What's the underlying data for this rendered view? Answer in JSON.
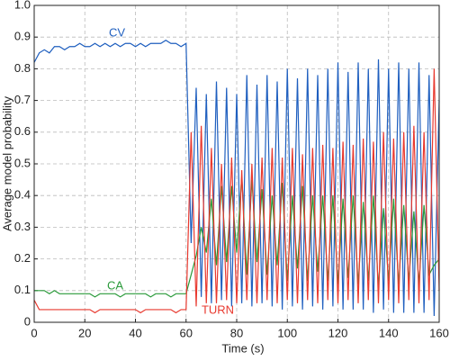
{
  "chart_data": {
    "type": "line",
    "xlabel": "Time (s)",
    "ylabel": "Average model probability",
    "annotations": [
      "CV",
      "CA",
      "TURN"
    ],
    "xlim": [
      0,
      160
    ],
    "ylim": [
      0,
      1
    ],
    "xticks": [
      0,
      20,
      40,
      60,
      80,
      100,
      120,
      140,
      160
    ],
    "yticks": [
      0,
      0.1,
      0.2,
      0.3,
      0.4,
      0.5,
      0.6,
      0.7,
      0.8,
      0.9,
      {
        "value": 1,
        "label": "1.0"
      }
    ],
    "grid": true,
    "x": [
      0,
      2,
      4,
      6,
      8,
      10,
      12,
      14,
      16,
      18,
      20,
      22,
      24,
      26,
      28,
      30,
      32,
      34,
      36,
      38,
      40,
      42,
      44,
      46,
      48,
      50,
      52,
      54,
      56,
      58,
      60,
      62,
      64,
      66,
      68,
      70,
      72,
      74,
      76,
      78,
      80,
      82,
      84,
      86,
      88,
      90,
      92,
      94,
      96,
      98,
      100,
      102,
      104,
      106,
      108,
      110,
      112,
      114,
      116,
      118,
      120,
      122,
      124,
      126,
      128,
      130,
      132,
      134,
      136,
      138,
      140,
      142,
      144,
      146,
      148,
      150,
      152,
      154,
      156,
      158,
      160
    ],
    "series": [
      {
        "name": "CV",
        "color": "#1f5fbf",
        "values": [
          0.82,
          0.85,
          0.86,
          0.85,
          0.87,
          0.87,
          0.86,
          0.87,
          0.87,
          0.88,
          0.87,
          0.87,
          0.88,
          0.87,
          0.88,
          0.87,
          0.88,
          0.87,
          0.88,
          0.88,
          0.87,
          0.88,
          0.87,
          0.88,
          0.88,
          0.88,
          0.89,
          0.88,
          0.88,
          0.87,
          0.88,
          0.25,
          0.74,
          0.08,
          0.72,
          0.06,
          0.76,
          0.07,
          0.74,
          0.05,
          0.72,
          0.06,
          0.78,
          0.05,
          0.75,
          0.06,
          0.78,
          0.05,
          0.76,
          0.04,
          0.8,
          0.05,
          0.77,
          0.04,
          0.8,
          0.05,
          0.78,
          0.04,
          0.8,
          0.05,
          0.82,
          0.04,
          0.79,
          0.04,
          0.82,
          0.04,
          0.8,
          0.03,
          0.83,
          0.04,
          0.8,
          0.03,
          0.82,
          0.03,
          0.8,
          0.03,
          0.82,
          0.03,
          0.78,
          0.02,
          0.7
        ]
      },
      {
        "name": "CA",
        "color": "#2a9a3a",
        "values": [
          0.1,
          0.1,
          0.1,
          0.09,
          0.1,
          0.09,
          0.09,
          0.09,
          0.09,
          0.09,
          0.09,
          0.09,
          0.08,
          0.09,
          0.09,
          0.09,
          0.09,
          0.08,
          0.09,
          0.09,
          0.09,
          0.09,
          0.09,
          0.08,
          0.09,
          0.09,
          0.09,
          0.08,
          0.09,
          0.09,
          0.09,
          0.15,
          0.21,
          0.3,
          0.22,
          0.39,
          0.18,
          0.43,
          0.19,
          0.43,
          0.22,
          0.46,
          0.15,
          0.45,
          0.19,
          0.42,
          0.15,
          0.4,
          0.18,
          0.44,
          0.13,
          0.4,
          0.17,
          0.43,
          0.13,
          0.4,
          0.16,
          0.4,
          0.13,
          0.4,
          0.12,
          0.39,
          0.14,
          0.4,
          0.12,
          0.38,
          0.13,
          0.4,
          0.11,
          0.36,
          0.13,
          0.39,
          0.12,
          0.37,
          0.13,
          0.35,
          0.12,
          0.37,
          0.15,
          0.18,
          0.2
        ]
      },
      {
        "name": "TURN",
        "color": "#e8392f",
        "values": [
          0.07,
          0.04,
          0.04,
          0.04,
          0.04,
          0.04,
          0.04,
          0.04,
          0.04,
          0.04,
          0.04,
          0.04,
          0.03,
          0.04,
          0.04,
          0.04,
          0.04,
          0.04,
          0.04,
          0.04,
          0.04,
          0.03,
          0.04,
          0.04,
          0.04,
          0.04,
          0.04,
          0.04,
          0.03,
          0.04,
          0.04,
          0.6,
          0.05,
          0.62,
          0.06,
          0.55,
          0.06,
          0.5,
          0.07,
          0.52,
          0.06,
          0.48,
          0.07,
          0.5,
          0.06,
          0.52,
          0.07,
          0.55,
          0.06,
          0.52,
          0.07,
          0.55,
          0.06,
          0.53,
          0.07,
          0.55,
          0.06,
          0.56,
          0.07,
          0.55,
          0.06,
          0.57,
          0.07,
          0.56,
          0.06,
          0.58,
          0.07,
          0.57,
          0.06,
          0.6,
          0.07,
          0.58,
          0.06,
          0.6,
          0.07,
          0.62,
          0.06,
          0.6,
          0.07,
          0.8,
          0.1
        ]
      }
    ]
  }
}
